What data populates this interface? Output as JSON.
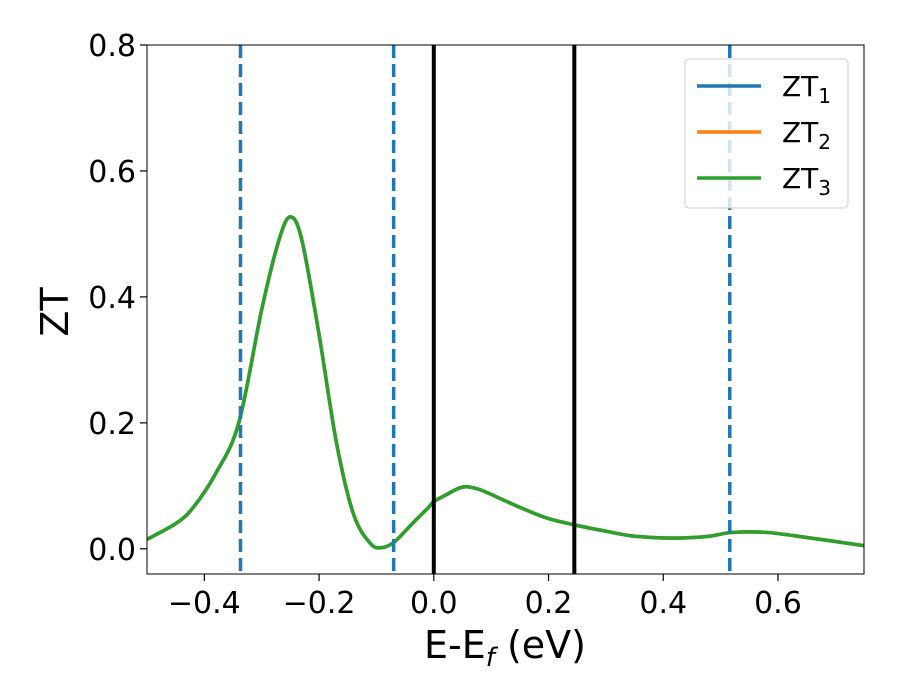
{
  "chart_data": {
    "type": "line",
    "title": "",
    "xlabel": {
      "main": "E-E",
      "sub": "f",
      "suffix": " (eV)"
    },
    "ylabel": "ZT",
    "xlim": [
      -0.5,
      0.75
    ],
    "ylim": [
      -0.04,
      0.8
    ],
    "xticks": [
      -0.4,
      -0.2,
      0.0,
      0.2,
      0.4,
      0.6
    ],
    "xtick_labels": [
      "−0.4",
      "−0.2",
      "0.0",
      "0.2",
      "0.4",
      "0.6"
    ],
    "yticks": [
      0.0,
      0.2,
      0.4,
      0.6,
      0.8
    ],
    "ytick_labels": [
      "0.0",
      "0.2",
      "0.4",
      "0.6",
      "0.8"
    ],
    "grid": false,
    "legend_position": "top-right",
    "x": [
      -0.5,
      -0.45,
      -0.42,
      -0.38,
      -0.34,
      -0.3,
      -0.27,
      -0.25,
      -0.23,
      -0.2,
      -0.17,
      -0.14,
      -0.11,
      -0.09,
      -0.07,
      -0.05,
      -0.03,
      -0.01,
      0.0,
      0.02,
      0.05,
      0.08,
      0.12,
      0.16,
      0.2,
      0.25,
      0.3,
      0.35,
      0.42,
      0.48,
      0.52,
      0.58,
      0.65,
      0.75
    ],
    "series": [
      {
        "name": {
          "main": "ZT",
          "sub": "1"
        },
        "color": "#1f77b4",
        "values": [
          0.015,
          0.04,
          0.065,
          0.12,
          0.2,
          0.38,
          0.49,
          0.527,
          0.49,
          0.34,
          0.17,
          0.055,
          0.008,
          0.002,
          0.01,
          0.028,
          0.047,
          0.065,
          0.075,
          0.085,
          0.098,
          0.094,
          0.078,
          0.062,
          0.048,
          0.037,
          0.028,
          0.02,
          0.017,
          0.02,
          0.026,
          0.026,
          0.018,
          0.005
        ]
      },
      {
        "name": {
          "main": "ZT",
          "sub": "2"
        },
        "color": "#ff7f0e",
        "values": [
          0.015,
          0.04,
          0.065,
          0.12,
          0.2,
          0.38,
          0.49,
          0.527,
          0.49,
          0.34,
          0.17,
          0.055,
          0.008,
          0.002,
          0.01,
          0.028,
          0.047,
          0.065,
          0.075,
          0.085,
          0.098,
          0.094,
          0.078,
          0.062,
          0.048,
          0.037,
          0.028,
          0.02,
          0.017,
          0.02,
          0.026,
          0.026,
          0.018,
          0.005
        ]
      },
      {
        "name": {
          "main": "ZT",
          "sub": "3"
        },
        "color": "#2ca02c",
        "values": [
          0.015,
          0.04,
          0.065,
          0.12,
          0.2,
          0.38,
          0.49,
          0.527,
          0.49,
          0.34,
          0.17,
          0.055,
          0.008,
          0.002,
          0.01,
          0.028,
          0.047,
          0.065,
          0.075,
          0.085,
          0.098,
          0.094,
          0.078,
          0.062,
          0.048,
          0.037,
          0.028,
          0.02,
          0.017,
          0.02,
          0.026,
          0.026,
          0.018,
          0.005
        ]
      }
    ],
    "vlines": [
      {
        "x": -0.337,
        "style": "dashed",
        "color": "#1f77b4"
      },
      {
        "x": -0.07,
        "style": "dashed",
        "color": "#1f77b4"
      },
      {
        "x": 0.0,
        "style": "solid",
        "color": "#000000"
      },
      {
        "x": 0.245,
        "style": "solid",
        "color": "#000000"
      },
      {
        "x": 0.516,
        "style": "dashed",
        "color": "#1f77b4"
      }
    ]
  }
}
